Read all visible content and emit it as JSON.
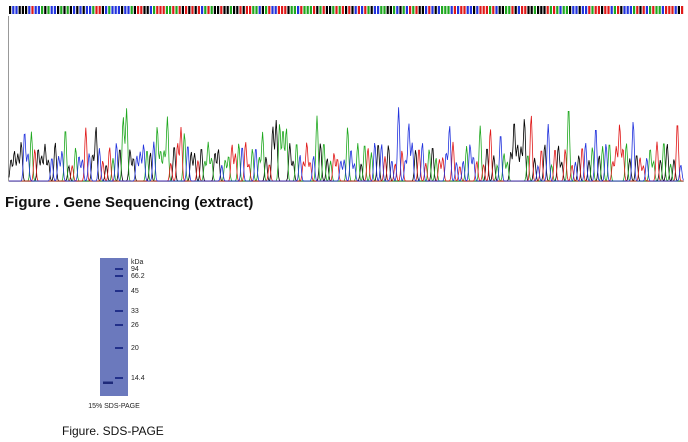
{
  "figures": [
    {
      "caption": "Figure . Gene Sequencing (extract)"
    },
    {
      "caption": "Figure. SDS-PAGE",
      "gel_label": "15% SDS-PAGE",
      "unit": "kDa",
      "markers": [
        "94",
        "66.2",
        "45",
        "33",
        "26",
        "20",
        "14.4"
      ]
    }
  ]
}
